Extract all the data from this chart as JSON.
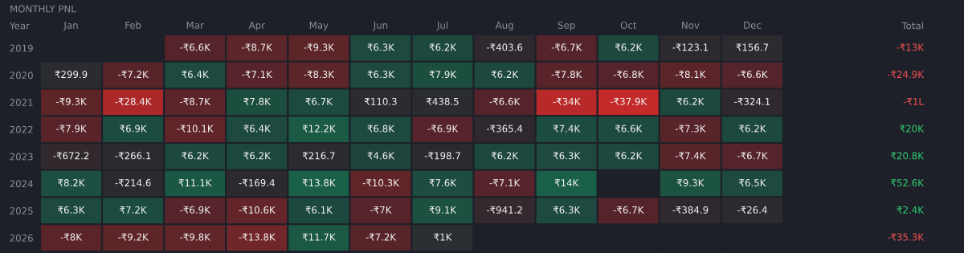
{
  "chart_data": {
    "type": "heatmap",
    "title": "MONTHLY PNL",
    "ylabel": "Year",
    "annotations": [
      "Total"
    ],
    "categories": [
      "Jan",
      "Feb",
      "Mar",
      "Apr",
      "May",
      "Jun",
      "Jul",
      "Aug",
      "Sep",
      "Oct",
      "Nov",
      "Dec"
    ],
    "y_categories": [
      "2019",
      "2020",
      "2021",
      "2022",
      "2023",
      "2024",
      "2025",
      "2026"
    ],
    "y2_categories": [
      "-₹13K",
      "-₹24.9K",
      "-₹1L",
      "₹20K",
      "₹20.8K",
      "₹52.6K",
      "₹2.4K",
      "-₹35.3K"
    ],
    "cells": [
      [
        null,
        null,
        -6600,
        -8700,
        -9300,
        6300,
        6200,
        -403.6,
        -6700,
        6200,
        -123.1,
        156.7
      ],
      [
        299.9,
        -7200,
        6400,
        -7100,
        -8300,
        6300,
        7900,
        6200,
        -7800,
        -6800,
        -8100,
        -6600
      ],
      [
        -9300,
        -28400,
        -8700,
        7800,
        6700,
        110.3,
        438.5,
        -6600,
        -34000,
        -37900,
        6200,
        -324.1
      ],
      [
        -7900,
        6900,
        -10100,
        6400,
        12200,
        6800,
        -6900,
        -365.4,
        7400,
        6600,
        -7300,
        6200
      ],
      [
        -672.2,
        -266.1,
        6200,
        6200,
        216.7,
        4600,
        -198.7,
        6200,
        6300,
        6200,
        -7400,
        -6700
      ],
      [
        8200,
        -214.6,
        11100,
        -169.4,
        13800,
        -10300,
        7600,
        -7100,
        14000,
        null,
        9300,
        6500
      ],
      [
        6300,
        7200,
        -6900,
        -10600,
        6100,
        -7000,
        9100,
        -941.2,
        6300,
        -6700,
        -384.9,
        -26.4
      ],
      [
        -8000,
        -9200,
        -9800,
        -13800,
        11700,
        -7200,
        1000,
        null,
        null,
        null,
        null,
        null
      ]
    ],
    "cell_labels": [
      [
        null,
        null,
        "-₹6.6K",
        "-₹8.7K",
        "-₹9.3K",
        "₹6.3K",
        "₹6.2K",
        "-₹403.6",
        "-₹6.7K",
        "₹6.2K",
        "-₹123.1",
        "₹156.7"
      ],
      [
        "₹299.9",
        "-₹7.2K",
        "₹6.4K",
        "-₹7.1K",
        "-₹8.3K",
        "₹6.3K",
        "₹7.9K",
        "₹6.2K",
        "-₹7.8K",
        "-₹6.8K",
        "-₹8.1K",
        "-₹6.6K"
      ],
      [
        "-₹9.3K",
        "-₹28.4K",
        "-₹8.7K",
        "₹7.8K",
        "₹6.7K",
        "₹110.3",
        "₹438.5",
        "-₹6.6K",
        "-₹34K",
        "-₹37.9K",
        "₹6.2K",
        "-₹324.1"
      ],
      [
        "-₹7.9K",
        "₹6.9K",
        "-₹10.1K",
        "₹6.4K",
        "₹12.2K",
        "₹6.8K",
        "-₹6.9K",
        "-₹365.4",
        "₹7.4K",
        "₹6.6K",
        "-₹7.3K",
        "₹6.2K"
      ],
      [
        "-₹672.2",
        "-₹266.1",
        "₹6.2K",
        "₹6.2K",
        "₹216.7",
        "₹4.6K",
        "-₹198.7",
        "₹6.2K",
        "₹6.3K",
        "₹6.2K",
        "-₹7.4K",
        "-₹6.7K"
      ],
      [
        "₹8.2K",
        "-₹214.6",
        "₹11.1K",
        "-₹169.4",
        "₹13.8K",
        "-₹10.3K",
        "₹7.6K",
        "-₹7.1K",
        "₹14K",
        null,
        "₹9.3K",
        "₹6.5K"
      ],
      [
        "₹6.3K",
        "₹7.2K",
        "-₹6.9K",
        "-₹10.6K",
        "₹6.1K",
        "-₹7K",
        "₹9.1K",
        "-₹941.2",
        "₹6.3K",
        "-₹6.7K",
        "-₹384.9",
        "-₹26.4"
      ],
      [
        "-₹8K",
        "-₹9.2K",
        "-₹9.8K",
        "-₹13.8K",
        "₹11.7K",
        "-₹7.2K",
        "₹1K",
        null,
        null,
        null,
        null,
        null
      ]
    ]
  }
}
